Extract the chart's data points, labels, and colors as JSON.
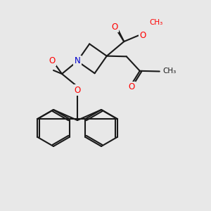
{
  "bg_color": "#e8e8e8",
  "bond_color": "#1a1a1a",
  "bond_width": 1.5,
  "atom_colors": {
    "O": "#ff0000",
    "N": "#0000cc",
    "C": "#1a1a1a"
  },
  "font_size_atom": 8.5,
  "font_size_small": 7.5
}
